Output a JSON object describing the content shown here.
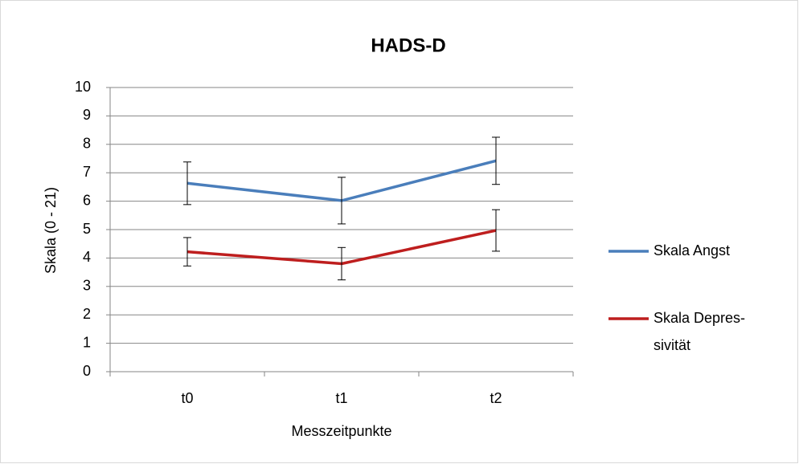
{
  "chart_data": {
    "type": "line",
    "title": "HADS-D",
    "xlabel": "Messzeitpunkte",
    "ylabel": "Skala (0 - 21)",
    "categories": [
      "t0",
      "t1",
      "t2"
    ],
    "series": [
      {
        "name": "Skala Angst",
        "color": "#4a7ebb",
        "values": [
          6.63,
          6.02,
          7.42
        ],
        "errors": [
          0.75,
          0.82,
          0.83
        ]
      },
      {
        "name": "Skala Depres-sivität",
        "color": "#be1e1e",
        "values": [
          4.22,
          3.8,
          4.97
        ],
        "errors": [
          0.5,
          0.57,
          0.73
        ]
      }
    ],
    "ylim": [
      0,
      10
    ],
    "yticks": [
      0,
      1,
      2,
      3,
      4,
      5,
      6,
      7,
      8,
      9,
      10
    ],
    "grid": true,
    "legend": "right"
  }
}
